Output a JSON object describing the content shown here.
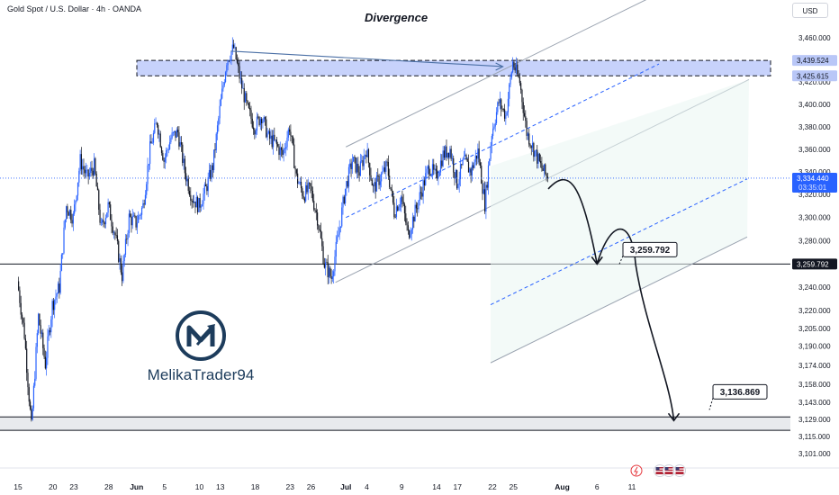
{
  "header": {
    "symbol_title": "Gold Spot / U.S. Dollar · 4h · OANDA",
    "chart_title": "Divergence",
    "currency_button": "USD"
  },
  "brand": {
    "name": "MelikaTrader94",
    "logo_icon": "m-arrow-logo-icon"
  },
  "colors": {
    "candle_up": "#2962ff",
    "candle_down": "#131722",
    "resistance_zone": "#c7d2fb",
    "support_zone": "#e8eaed",
    "channel_line": "#9aa3b0",
    "channel_dash": "#2962ff",
    "brand_navy": "#1d3c5c"
  },
  "chart_data": {
    "type": "candlestick",
    "title": "Divergence",
    "symbol": "Gold Spot / U.S. Dollar",
    "interval": "4h",
    "source": "OANDA",
    "y_scale": "log",
    "ylim": [
      3095,
      3470
    ],
    "y_ticks": [
      3460,
      3440,
      3420,
      3400,
      3380,
      3360,
      3340,
      3320,
      3300,
      3280,
      3260,
      3240,
      3220,
      3205,
      3190,
      3174,
      3158,
      3143,
      3129,
      3115,
      3101
    ],
    "y_tick_labels": [
      "3,460.000",
      "3,440.000",
      "3,420.000",
      "3,400.000",
      "3,380.000",
      "3,360.000",
      "3,340.000",
      "3,320.000",
      "3,300.000",
      "3,280.000",
      "3,260.000",
      "3,240.000",
      "3,220.000",
      "3,205.000",
      "3,190.000",
      "3,174.000",
      "3,158.000",
      "3,143.000",
      "3,129.000",
      "3,115.000",
      "3,101.000"
    ],
    "x_ticks": [
      {
        "label": "15",
        "day": 0
      },
      {
        "label": "20",
        "day": 5
      },
      {
        "label": "23",
        "day": 8
      },
      {
        "label": "28",
        "day": 13
      },
      {
        "label": "Jun",
        "day": 17,
        "bold": true
      },
      {
        "label": "5",
        "day": 21
      },
      {
        "label": "10",
        "day": 26
      },
      {
        "label": "13",
        "day": 29
      },
      {
        "label": "18",
        "day": 34
      },
      {
        "label": "23",
        "day": 39
      },
      {
        "label": "26",
        "day": 42
      },
      {
        "label": "Jul",
        "day": 47,
        "bold": true
      },
      {
        "label": "4",
        "day": 50
      },
      {
        "label": "9",
        "day": 55
      },
      {
        "label": "14",
        "day": 60
      },
      {
        "label": "17",
        "day": 63
      },
      {
        "label": "22",
        "day": 68
      },
      {
        "label": "25",
        "day": 71
      },
      {
        "label": "Aug",
        "day": 78,
        "bold": true
      },
      {
        "label": "6",
        "day": 83
      },
      {
        "label": "11",
        "day": 88
      }
    ],
    "price_path": [
      {
        "day": 0,
        "price": 3245
      },
      {
        "day": 1,
        "price": 3200
      },
      {
        "day": 2,
        "price": 3122
      },
      {
        "day": 3,
        "price": 3215
      },
      {
        "day": 4,
        "price": 3175
      },
      {
        "day": 5,
        "price": 3225
      },
      {
        "day": 6,
        "price": 3240
      },
      {
        "day": 7,
        "price": 3310
      },
      {
        "day": 8,
        "price": 3300
      },
      {
        "day": 9,
        "price": 3350
      },
      {
        "day": 10,
        "price": 3335
      },
      {
        "day": 11,
        "price": 3345
      },
      {
        "day": 12,
        "price": 3290
      },
      {
        "day": 13,
        "price": 3310
      },
      {
        "day": 14,
        "price": 3285
      },
      {
        "day": 15,
        "price": 3250
      },
      {
        "day": 16,
        "price": 3300
      },
      {
        "day": 17,
        "price": 3295
      },
      {
        "day": 18,
        "price": 3310
      },
      {
        "day": 19,
        "price": 3360
      },
      {
        "day": 20,
        "price": 3385
      },
      {
        "day": 21,
        "price": 3350
      },
      {
        "day": 22,
        "price": 3370
      },
      {
        "day": 23,
        "price": 3375
      },
      {
        "day": 24,
        "price": 3340
      },
      {
        "day": 25,
        "price": 3318
      },
      {
        "day": 26,
        "price": 3310
      },
      {
        "day": 27,
        "price": 3325
      },
      {
        "day": 28,
        "price": 3345
      },
      {
        "day": 29,
        "price": 3395
      },
      {
        "day": 30,
        "price": 3440
      },
      {
        "day": 31,
        "price": 3451
      },
      {
        "day": 32,
        "price": 3420
      },
      {
        "day": 33,
        "price": 3395
      },
      {
        "day": 34,
        "price": 3380
      },
      {
        "day": 35,
        "price": 3390
      },
      {
        "day": 36,
        "price": 3370
      },
      {
        "day": 37,
        "price": 3365
      },
      {
        "day": 38,
        "price": 3355
      },
      {
        "day": 39,
        "price": 3380
      },
      {
        "day": 40,
        "price": 3335
      },
      {
        "day": 41,
        "price": 3320
      },
      {
        "day": 42,
        "price": 3325
      },
      {
        "day": 43,
        "price": 3300
      },
      {
        "day": 44,
        "price": 3260
      },
      {
        "day": 45,
        "price": 3248
      },
      {
        "day": 46,
        "price": 3285
      },
      {
        "day": 47,
        "price": 3325
      },
      {
        "day": 48,
        "price": 3350
      },
      {
        "day": 49,
        "price": 3340
      },
      {
        "day": 50,
        "price": 3360
      },
      {
        "day": 51,
        "price": 3325
      },
      {
        "day": 52,
        "price": 3335
      },
      {
        "day": 53,
        "price": 3345
      },
      {
        "day": 54,
        "price": 3305
      },
      {
        "day": 55,
        "price": 3318
      },
      {
        "day": 56,
        "price": 3285
      },
      {
        "day": 57,
        "price": 3305
      },
      {
        "day": 58,
        "price": 3325
      },
      {
        "day": 59,
        "price": 3345
      },
      {
        "day": 60,
        "price": 3335
      },
      {
        "day": 61,
        "price": 3355
      },
      {
        "day": 62,
        "price": 3360
      },
      {
        "day": 63,
        "price": 3330
      },
      {
        "day": 64,
        "price": 3350
      },
      {
        "day": 65,
        "price": 3340
      },
      {
        "day": 66,
        "price": 3358
      },
      {
        "day": 67,
        "price": 3312
      },
      {
        "day": 68,
        "price": 3375
      },
      {
        "day": 69,
        "price": 3402
      },
      {
        "day": 70,
        "price": 3390
      },
      {
        "day": 71,
        "price": 3438
      },
      {
        "day": 72,
        "price": 3420
      },
      {
        "day": 73,
        "price": 3375
      },
      {
        "day": 74,
        "price": 3360
      },
      {
        "day": 75,
        "price": 3345
      },
      {
        "day": 76,
        "price": 3334.44
      }
    ],
    "zones": [
      {
        "name": "resistance",
        "top": 3439.524,
        "bottom": 3425.615
      },
      {
        "name": "support",
        "top": 3131,
        "bottom": 3120
      }
    ],
    "horizontal_levels": [
      3259.792
    ],
    "annotations": [
      {
        "text": "3,259.792",
        "price": 3259.792
      },
      {
        "text": "3,136.869",
        "price": 3136.869
      },
      {
        "text": "Divergence"
      }
    ],
    "price_labels": [
      {
        "text": "3,439.524",
        "price": 3439.524
      },
      {
        "text": "3,425.615",
        "price": 3425.615
      },
      {
        "text": "3,334.440",
        "price": 3334.44,
        "sub": "03:35:01",
        "current": true
      },
      {
        "text": "3,259.792",
        "price": 3259.792
      }
    ],
    "projection": [
      {
        "day": 76,
        "price": 3325
      },
      {
        "day": 79,
        "price": 3320
      },
      {
        "day": 83,
        "price": 3259.792
      },
      {
        "day": 85,
        "price": 3285
      },
      {
        "day": 88,
        "price": 3260
      },
      {
        "day": 94,
        "price": 3128
      }
    ],
    "grid": false,
    "legend": "none"
  }
}
